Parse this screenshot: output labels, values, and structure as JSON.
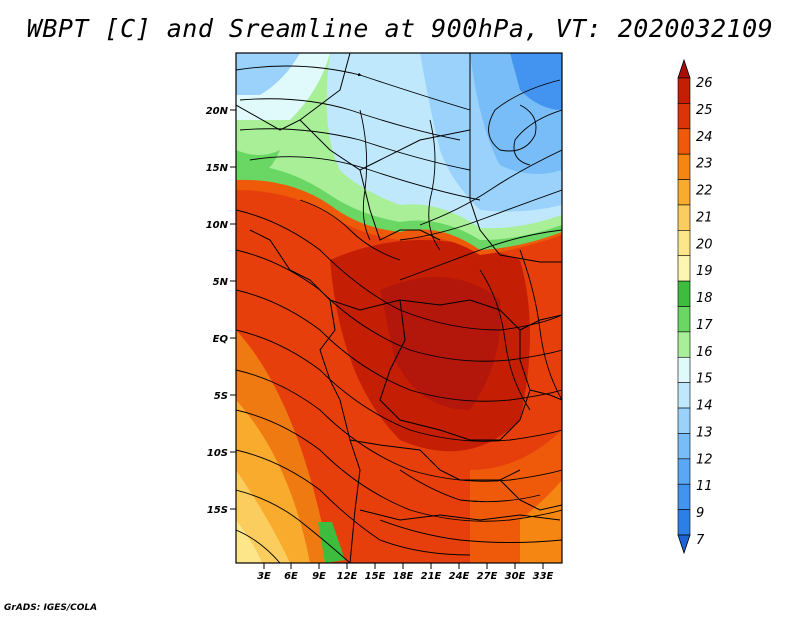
{
  "title": "WBPT [C] and Sreamline at 900hPa, VT: 2020032109",
  "lat_labels": [
    "20N",
    "15N",
    "10N",
    "5N",
    "EQ",
    "5S",
    "10S",
    "15S"
  ],
  "lon_labels": [
    "3E",
    "6E",
    "9E",
    "12E",
    "15E",
    "18E",
    "21E",
    "24E",
    "27E",
    "30E",
    "33E"
  ],
  "colorbar": {
    "levels": [
      "7",
      "9",
      "11",
      "12",
      "13",
      "14",
      "15",
      "16",
      "17",
      "18",
      "19",
      "20",
      "21",
      "22",
      "23",
      "24",
      "25",
      "26"
    ],
    "colors": [
      "#1f64d6",
      "#2c7fe6",
      "#4294f0",
      "#5aa7f5",
      "#79bdf8",
      "#9ad2fb",
      "#bfe8fc",
      "#e0fafc",
      "#a8ef98",
      "#6ad764",
      "#3ebc3e",
      "#fdf6b0",
      "#fde58a",
      "#fbcd5e",
      "#f9ab2e",
      "#f58612",
      "#ee5a0a",
      "#dc3308",
      "#c41e05",
      "#a60d04"
    ]
  },
  "credit": "GrADS: IGES/COLA"
}
